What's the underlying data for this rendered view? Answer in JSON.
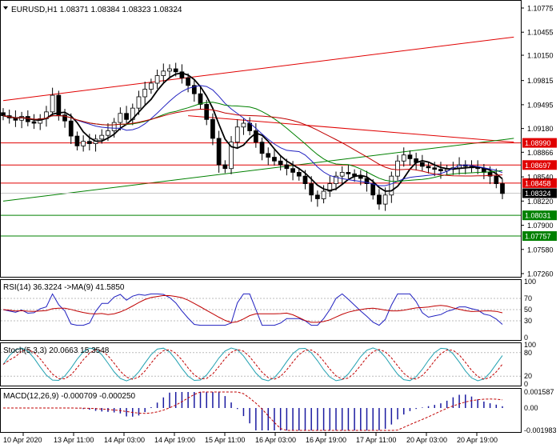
{
  "main": {
    "header": "EURUSD,H1  1.08371 1.08384 1.08323 1.08324",
    "symbol": "EURUSD,H1",
    "ohlc": [
      "1.08371",
      "1.08384",
      "1.08323",
      "1.08324"
    ]
  },
  "rsi": {
    "header": "RSI(14) 36.3224  ->MA(9) 41.5850",
    "ticks": [
      "100",
      "70",
      "50",
      "30",
      "0"
    ]
  },
  "stoch": {
    "header": "Stoch(5,3,3) 20.0663 15.3548",
    "ticks": [
      "100",
      "80",
      "20",
      "0"
    ]
  },
  "macd": {
    "header": "MACD(12,26,9) -0.000709 -0.000250",
    "ticks": [
      "0.001587",
      "0.00",
      "-0.001983"
    ]
  },
  "x_labels": [
    "10 Apr 2020",
    "13 Apr 11:00",
    "14 Apr 03:00",
    "14 Apr 19:00",
    "15 Apr 11:00",
    "16 Apr 03:00",
    "16 Apr 19:00",
    "17 Apr 11:00",
    "20 Apr 03:00",
    "20 Apr 19:00"
  ],
  "price_axis": [
    "1.10775",
    "1.10455",
    "1.10150",
    "1.09815",
    "1.09495",
    "1.09180",
    "1.08866",
    "1.08540",
    "1.08220",
    "1.07900",
    "1.07580",
    "1.07260"
  ],
  "levels": [
    {
      "value": 1.0899,
      "label": "1.08990",
      "color": "#e00000"
    },
    {
      "value": 1.08697,
      "label": "1.08697",
      "color": "#e00000"
    },
    {
      "value": 1.08458,
      "label": "1.08458",
      "color": "#e00000"
    },
    {
      "value": 1.08324,
      "label": "1.08324",
      "color": "#000000"
    },
    {
      "value": 1.08031,
      "label": "1.08031",
      "color": "#008000"
    },
    {
      "value": 1.07757,
      "label": "1.07757",
      "color": "#008000"
    }
  ],
  "chart_data": {
    "type": "line",
    "price_range": [
      1.0726,
      1.10775
    ],
    "close": [
      1.0935,
      1.0932,
      1.0929,
      1.0934,
      1.0927,
      1.0925,
      1.0931,
      1.094,
      1.0962,
      1.0936,
      1.0928,
      1.0908,
      1.0895,
      1.0901,
      1.0898,
      1.0904,
      1.0909,
      1.0915,
      1.0926,
      1.0938,
      1.093,
      1.0945,
      1.096,
      1.097,
      1.0978,
      1.0988,
      1.0994,
      1.0997,
      1.0993,
      1.0985,
      1.0975,
      1.0964,
      1.095,
      1.093,
      1.0905,
      1.087,
      1.0865,
      1.09,
      1.092,
      1.0925,
      1.0915,
      1.09,
      1.0885,
      1.088,
      1.0875,
      1.087,
      1.0865,
      1.086,
      1.0855,
      1.0845,
      1.083,
      1.0825,
      1.0835,
      1.0845,
      1.0855,
      1.086,
      1.0858,
      1.0855,
      1.0852,
      1.0845,
      1.083,
      1.0818,
      1.083,
      1.0855,
      1.0875,
      1.0883,
      1.0878,
      1.0873,
      1.0868,
      1.0866,
      1.0864,
      1.0862,
      1.0864,
      1.0866,
      1.087,
      1.0868,
      1.0866,
      1.0865,
      1.086,
      1.0855,
      1.0845,
      1.0832
    ],
    "trendlines": [
      {
        "color": "#e00000",
        "from": [
          0,
          1.0955
        ],
        "to": [
          80,
          1.1039
        ]
      },
      {
        "color": "#e00000",
        "from": [
          30,
          1.0935
        ],
        "to": [
          80,
          1.09
        ]
      },
      {
        "color": "#008000",
        "from": [
          0,
          1.0822
        ],
        "to": [
          80,
          1.0905
        ]
      }
    ]
  }
}
